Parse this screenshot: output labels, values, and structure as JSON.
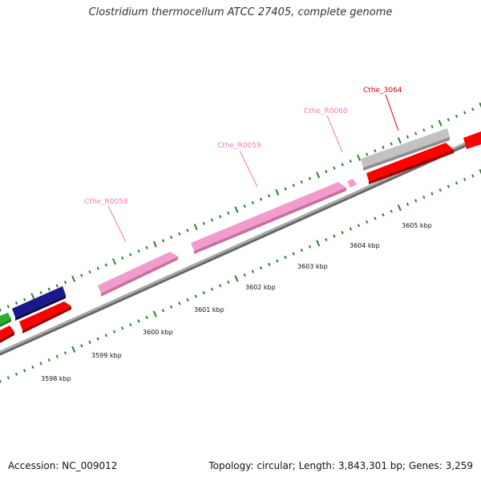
{
  "title": "Clostridium thermocellum ATCC 27405, complete genome",
  "footer": {
    "accession": "Accession: NC_009012",
    "summary": "Topology: circular; Length: 3,843,301 bp; Genes: 3,259"
  },
  "colors": {
    "backbone": "#8a8a8a",
    "tick": "#2e7d2e",
    "rna_feature": "#f29ccd",
    "gene_forward_red": "#ff0000",
    "gene_navy": "#1a1a8c",
    "gene_green": "#27b12b",
    "gene_gray": "#c2c2c2",
    "label_pink": "#f07ab8",
    "label_red": "#dd0000"
  },
  "scale_labels": [
    {
      "text": "3598 kbp"
    },
    {
      "text": "3599 kbp"
    },
    {
      "text": "3600 kbp"
    },
    {
      "text": "3601 kbp"
    },
    {
      "text": "3602 kbp"
    },
    {
      "text": "3603 kbp"
    },
    {
      "text": "3604 kbp"
    },
    {
      "text": "3605 kbp"
    }
  ],
  "feature_labels": [
    {
      "text": "Cthe_R0058",
      "color_key": "label_pink"
    },
    {
      "text": "Cthe_R0059",
      "color_key": "label_pink"
    },
    {
      "text": "Cthe_R0060",
      "color_key": "label_pink"
    },
    {
      "text": "Cthe_3064",
      "color_key": "label_red"
    }
  ]
}
